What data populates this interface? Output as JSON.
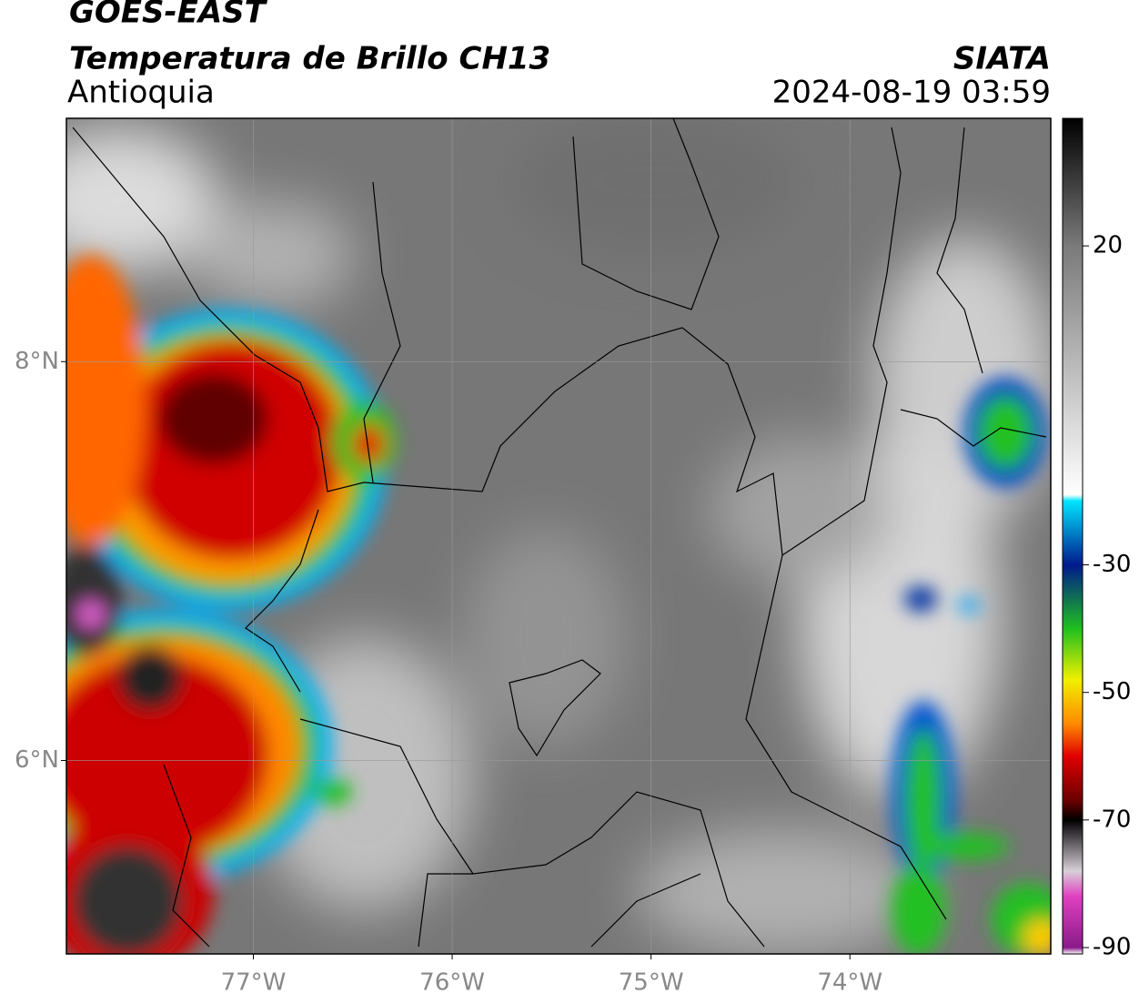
{
  "header": {
    "title": "GOES-EAST",
    "subtitle": "Temperatura de Brillo CH13",
    "region": "Antioquia",
    "source": "SIATA",
    "datetime": "2024-08-19 03:59"
  },
  "map": {
    "xlim": [
      -77.94,
      -72.99
    ],
    "ylim": [
      5.03,
      9.22
    ],
    "xticks": [
      {
        "value": -77,
        "label": "77°W"
      },
      {
        "value": -76,
        "label": "76°W"
      },
      {
        "value": -75,
        "label": "75°W"
      },
      {
        "value": -74,
        "label": "74°W"
      }
    ],
    "yticks": [
      {
        "value": 8,
        "label": "8°N"
      },
      {
        "value": 6,
        "label": "6°N"
      }
    ]
  },
  "colorbar": {
    "lim": [
      -91,
      40
    ],
    "ticks": [
      20,
      -30,
      -50,
      -70,
      -90
    ],
    "colormap": [
      {
        "value": 40,
        "color": "#000000"
      },
      {
        "value": 20,
        "color": "#7a7a7a"
      },
      {
        "value": -19,
        "color": "#ffffff"
      },
      {
        "value": -20,
        "color": "#00e5ff"
      },
      {
        "value": -30,
        "color": "#001a8c"
      },
      {
        "value": -40,
        "color": "#1fbf1f"
      },
      {
        "value": -48,
        "color": "#f0f000"
      },
      {
        "value": -55,
        "color": "#ff8800"
      },
      {
        "value": -60,
        "color": "#e00000"
      },
      {
        "value": -67,
        "color": "#6a0000"
      },
      {
        "value": -70,
        "color": "#000000"
      },
      {
        "value": -78,
        "color": "#d8d0d8"
      },
      {
        "value": -82,
        "color": "#e040c0"
      },
      {
        "value": -90,
        "color": "#8a1a8a"
      },
      {
        "value": -91,
        "color": "#ffffff"
      }
    ]
  }
}
